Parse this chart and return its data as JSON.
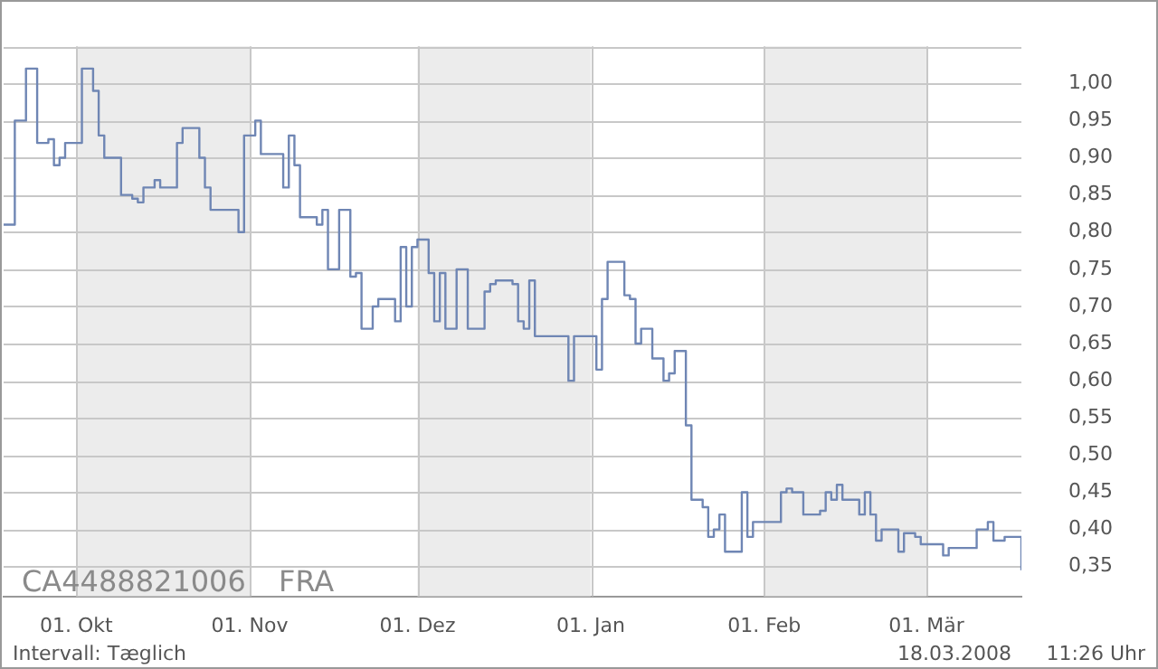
{
  "chart_data": {
    "type": "step",
    "x": [
      "2007-09-18",
      "2007-09-20",
      "2007-09-22",
      "2007-09-24",
      "2007-09-26",
      "2007-09-27",
      "2007-09-28",
      "2007-09-29",
      "2007-10-02",
      "2007-10-04",
      "2007-10-05",
      "2007-10-06",
      "2007-10-09",
      "2007-10-11",
      "2007-10-12",
      "2007-10-13",
      "2007-10-15",
      "2007-10-16",
      "2007-10-19",
      "2007-10-20",
      "2007-10-23",
      "2007-10-24",
      "2007-10-25",
      "2007-10-30",
      "2007-10-31",
      "2007-11-02",
      "2007-11-03",
      "2007-11-07",
      "2007-11-08",
      "2007-11-09",
      "2007-11-10",
      "2007-11-13",
      "2007-11-14",
      "2007-11-15",
      "2007-11-17",
      "2007-11-19",
      "2007-11-20",
      "2007-11-21",
      "2007-11-23",
      "2007-11-24",
      "2007-11-27",
      "2007-11-28",
      "2007-11-29",
      "2007-11-30",
      "2007-12-01",
      "2007-12-03",
      "2007-12-04",
      "2007-12-05",
      "2007-12-06",
      "2007-12-08",
      "2007-12-10",
      "2007-12-13",
      "2007-12-14",
      "2007-12-15",
      "2007-12-18",
      "2007-12-19",
      "2007-12-20",
      "2007-12-21",
      "2007-12-22",
      "2007-12-28",
      "2007-12-29",
      "2008-01-02",
      "2008-01-03",
      "2008-01-04",
      "2008-01-07",
      "2008-01-08",
      "2008-01-09",
      "2008-01-10",
      "2008-01-12",
      "2008-01-14",
      "2008-01-15",
      "2008-01-16",
      "2008-01-18",
      "2008-01-19",
      "2008-01-21",
      "2008-01-22",
      "2008-01-23",
      "2008-01-24",
      "2008-01-25",
      "2008-01-28",
      "2008-01-29",
      "2008-01-30",
      "2008-02-04",
      "2008-02-05",
      "2008-02-06",
      "2008-02-08",
      "2008-02-11",
      "2008-02-12",
      "2008-02-13",
      "2008-02-14",
      "2008-02-15",
      "2008-02-18",
      "2008-02-19",
      "2008-02-20",
      "2008-02-21",
      "2008-02-22",
      "2008-02-25",
      "2008-02-26",
      "2008-02-28",
      "2008-02-29",
      "2008-03-04",
      "2008-03-05",
      "2008-03-10",
      "2008-03-12",
      "2008-03-13",
      "2008-03-15",
      "2008-03-18"
    ],
    "values": [
      0.81,
      0.95,
      1.02,
      0.92,
      0.925,
      0.89,
      0.9,
      0.92,
      1.02,
      0.99,
      0.93,
      0.9,
      0.85,
      0.845,
      0.84,
      0.86,
      0.87,
      0.86,
      0.92,
      0.94,
      0.9,
      0.86,
      0.83,
      0.8,
      0.93,
      0.95,
      0.905,
      0.86,
      0.93,
      0.89,
      0.82,
      0.81,
      0.83,
      0.75,
      0.83,
      0.74,
      0.745,
      0.67,
      0.7,
      0.71,
      0.68,
      0.78,
      0.7,
      0.78,
      0.79,
      0.745,
      0.68,
      0.745,
      0.67,
      0.75,
      0.67,
      0.72,
      0.73,
      0.735,
      0.73,
      0.68,
      0.67,
      0.735,
      0.66,
      0.6,
      0.66,
      0.615,
      0.71,
      0.76,
      0.715,
      0.71,
      0.65,
      0.67,
      0.63,
      0.6,
      0.61,
      0.64,
      0.54,
      0.44,
      0.43,
      0.39,
      0.4,
      0.42,
      0.37,
      0.45,
      0.39,
      0.41,
      0.45,
      0.455,
      0.45,
      0.42,
      0.425,
      0.45,
      0.44,
      0.46,
      0.44,
      0.42,
      0.45,
      0.42,
      0.385,
      0.4,
      0.37,
      0.395,
      0.39,
      0.38,
      0.365,
      0.375,
      0.4,
      0.41,
      0.385,
      0.39,
      0.345
    ],
    "color": "#6f86b4",
    "xlim": [
      "2007-09-18",
      "2008-03-18"
    ],
    "xticks": [
      {
        "value": "2007-10-01",
        "label": "01. Okt"
      },
      {
        "value": "2007-11-01",
        "label": "01. Nov"
      },
      {
        "value": "2007-12-01",
        "label": "01. Dez"
      },
      {
        "value": "2008-01-01",
        "label": "01. Jan"
      },
      {
        "value": "2008-02-01",
        "label": "01. Feb"
      },
      {
        "value": "2008-03-01",
        "label": "01. Mär"
      }
    ],
    "ylim": [
      0.31,
      1.05
    ],
    "yticks": [
      {
        "value": 0.35,
        "label": "0,35"
      },
      {
        "value": 0.4,
        "label": "0,40"
      },
      {
        "value": 0.45,
        "label": "0,45"
      },
      {
        "value": 0.5,
        "label": "0,50"
      },
      {
        "value": 0.55,
        "label": "0,55"
      },
      {
        "value": 0.6,
        "label": "0,60"
      },
      {
        "value": 0.65,
        "label": "0,65"
      },
      {
        "value": 0.7,
        "label": "0,70"
      },
      {
        "value": 0.75,
        "label": "0,75"
      },
      {
        "value": 0.8,
        "label": "0,80"
      },
      {
        "value": 0.85,
        "label": "0,85"
      },
      {
        "value": 0.9,
        "label": "0,90"
      },
      {
        "value": 0.95,
        "label": "0,95"
      },
      {
        "value": 1.0,
        "label": "1,00"
      },
      {
        "value": 1.05,
        "label": null
      }
    ],
    "bands": [
      {
        "axis": "x",
        "from": "2007-10-01",
        "to": "2007-11-01",
        "color": "#ececec"
      },
      {
        "axis": "x",
        "from": "2007-12-01",
        "to": "2008-01-01",
        "color": "#ececec"
      },
      {
        "axis": "x",
        "from": "2008-02-01",
        "to": "2008-03-01",
        "color": "#ececec"
      }
    ],
    "grid": true,
    "annotations": [
      "CA4488821006",
      "FRA",
      "Intervall: Tæglich",
      "18.03.2008",
      "11:26 Uhr"
    ]
  }
}
